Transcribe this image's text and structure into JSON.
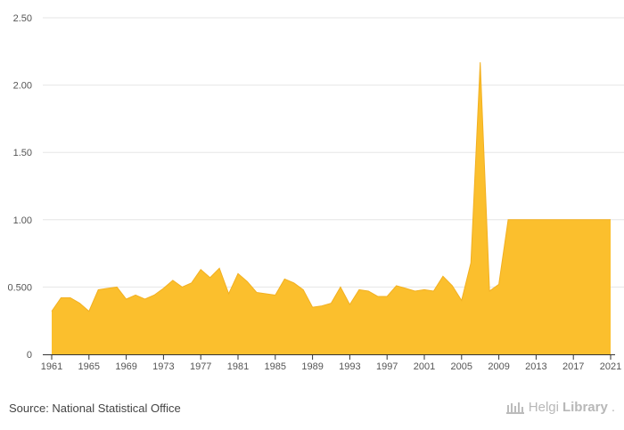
{
  "chart_data": {
    "type": "area",
    "title": "",
    "xlabel": "",
    "ylabel": "",
    "ylim": [
      0,
      2.5
    ],
    "xlim": [
      1961,
      2021
    ],
    "yticks": [
      {
        "value": 0,
        "label": "0"
      },
      {
        "value": 0.5,
        "label": "0.500"
      },
      {
        "value": 1.0,
        "label": "1.00"
      },
      {
        "value": 1.5,
        "label": "1.50"
      },
      {
        "value": 2.0,
        "label": "2.00"
      },
      {
        "value": 2.5,
        "label": "2.50"
      }
    ],
    "xticks": [
      1961,
      1965,
      1969,
      1973,
      1977,
      1981,
      1985,
      1989,
      1993,
      1997,
      2001,
      2005,
      2009,
      2013,
      2017,
      2021
    ],
    "grid": true,
    "color": "#FBBF2D",
    "x": [
      1961,
      1962,
      1963,
      1964,
      1965,
      1966,
      1967,
      1968,
      1969,
      1970,
      1971,
      1972,
      1973,
      1974,
      1975,
      1976,
      1977,
      1978,
      1979,
      1980,
      1981,
      1982,
      1983,
      1984,
      1985,
      1986,
      1987,
      1988,
      1989,
      1990,
      1991,
      1992,
      1993,
      1994,
      1995,
      1996,
      1997,
      1998,
      1999,
      2000,
      2001,
      2002,
      2003,
      2004,
      2005,
      2006,
      2007,
      2008,
      2009,
      2010,
      2011,
      2012,
      2013,
      2014,
      2015,
      2016,
      2017,
      2018,
      2019,
      2020,
      2021
    ],
    "values": [
      0.32,
      0.42,
      0.42,
      0.38,
      0.32,
      0.48,
      0.49,
      0.5,
      0.41,
      0.44,
      0.41,
      0.44,
      0.49,
      0.55,
      0.5,
      0.53,
      0.63,
      0.57,
      0.64,
      0.45,
      0.6,
      0.54,
      0.46,
      0.45,
      0.44,
      0.56,
      0.53,
      0.48,
      0.35,
      0.36,
      0.38,
      0.5,
      0.37,
      0.48,
      0.47,
      0.43,
      0.43,
      0.51,
      0.49,
      0.47,
      0.48,
      0.47,
      0.58,
      0.51,
      0.4,
      0.68,
      2.17,
      0.47,
      0.52,
      1.0,
      1.0,
      1.0,
      1.0,
      1.0,
      1.0,
      1.0,
      1.0,
      1.0,
      1.0,
      1.0,
      1.0
    ]
  },
  "footer": {
    "source": "Source: National Statistical Office",
    "brand_light": "Helgi",
    "brand_bold": "Library",
    "brand_dot": "."
  }
}
